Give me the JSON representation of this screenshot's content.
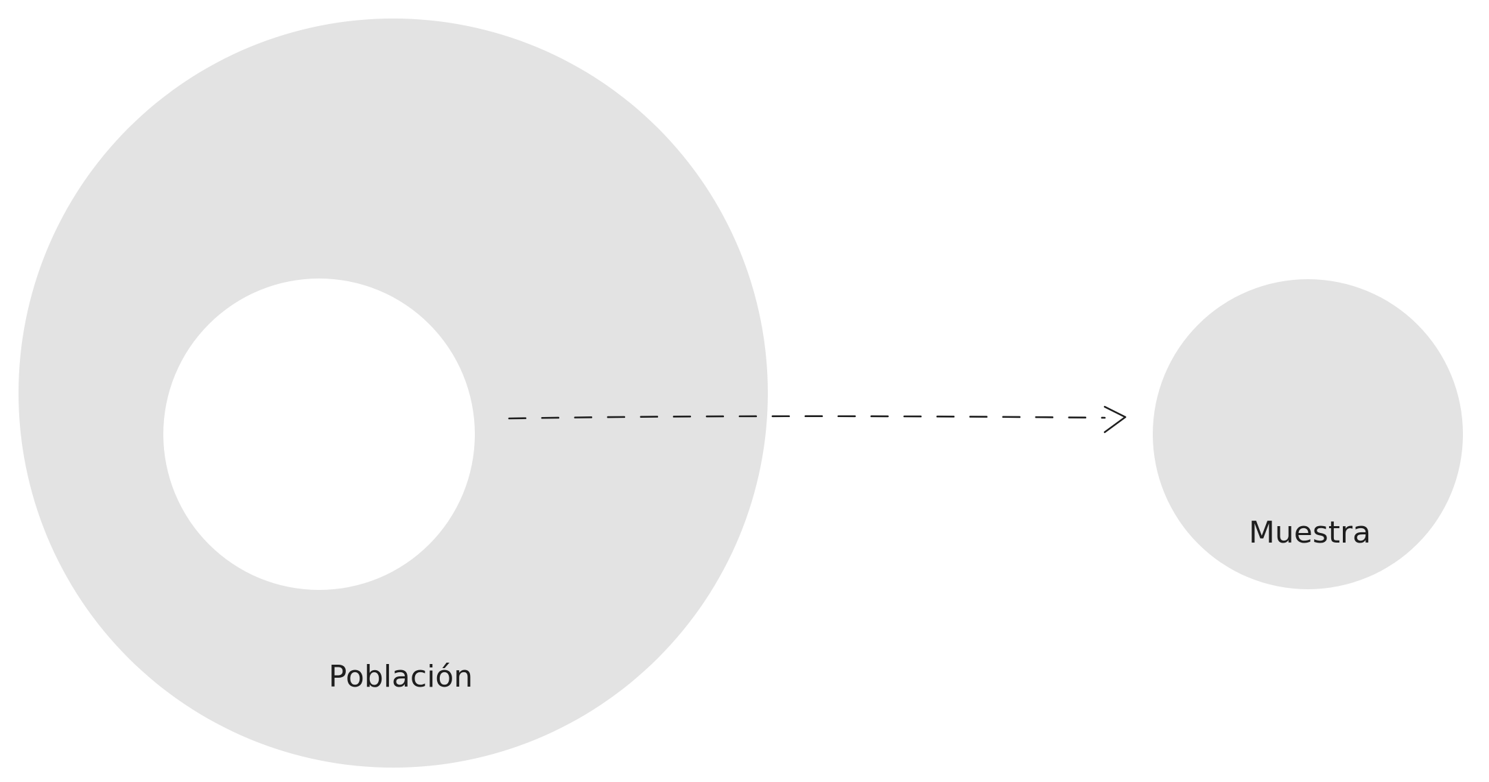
{
  "diagram": {
    "population": {
      "label": "Población"
    },
    "sample": {
      "label": "Muestra"
    },
    "colors": {
      "background": "#ffffff",
      "circle_fill": "#e3e3e3",
      "inner_hole": "#ffffff",
      "stroke": "#1e1e1e",
      "text": "#1e1e1e"
    }
  }
}
